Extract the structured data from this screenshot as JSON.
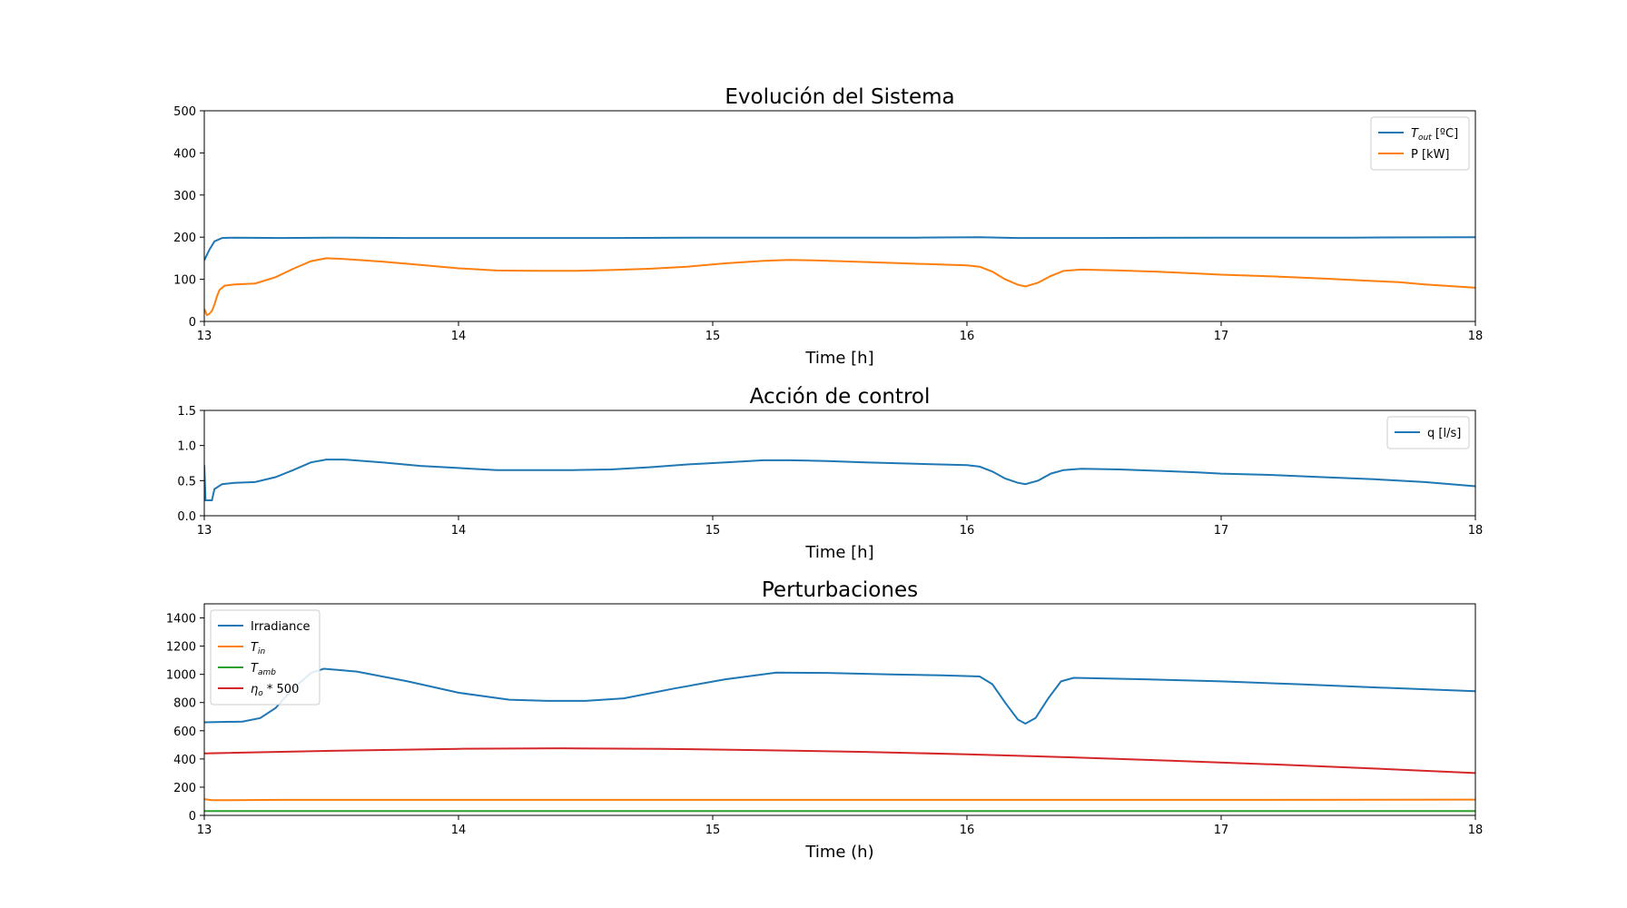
{
  "chart_data": [
    {
      "type": "line",
      "title": "Evolución del Sistema",
      "xlabel": "Time [h]",
      "ylabel": "",
      "xlim": [
        13,
        18
      ],
      "ylim": [
        0,
        500
      ],
      "xticks": [
        13,
        14,
        15,
        16,
        17,
        18
      ],
      "yticks": [
        0,
        100,
        200,
        300,
        400,
        500
      ],
      "grid": false,
      "legend_position": "top-right",
      "series": [
        {
          "name": "T_out [ºC]",
          "legend_main": "T",
          "legend_sub": "out",
          "legend_rest": " [ºC]",
          "color": "#1f77b4",
          "points": [
            [
              13.0,
              145
            ],
            [
              13.02,
              170
            ],
            [
              13.04,
              190
            ],
            [
              13.07,
              198
            ],
            [
              13.12,
              199
            ],
            [
              13.3,
              198
            ],
            [
              13.5,
              199
            ],
            [
              13.8,
              198
            ],
            [
              14.2,
              198
            ],
            [
              14.6,
              198
            ],
            [
              15.0,
              199
            ],
            [
              15.4,
              199
            ],
            [
              15.8,
              199
            ],
            [
              16.05,
              200
            ],
            [
              16.2,
              198
            ],
            [
              16.5,
              198
            ],
            [
              17.0,
              199
            ],
            [
              17.5,
              199
            ],
            [
              18.0,
              200
            ]
          ]
        },
        {
          "name": "P [kW]",
          "color": "#ff7f0e",
          "points": [
            [
              13.0,
              30
            ],
            [
              13.01,
              15
            ],
            [
              13.02,
              18
            ],
            [
              13.03,
              25
            ],
            [
              13.04,
              40
            ],
            [
              13.05,
              60
            ],
            [
              13.06,
              75
            ],
            [
              13.08,
              85
            ],
            [
              13.12,
              88
            ],
            [
              13.2,
              90
            ],
            [
              13.28,
              105
            ],
            [
              13.35,
              125
            ],
            [
              13.42,
              143
            ],
            [
              13.48,
              150
            ],
            [
              13.55,
              148
            ],
            [
              13.7,
              142
            ],
            [
              13.85,
              134
            ],
            [
              14.0,
              126
            ],
            [
              14.15,
              121
            ],
            [
              14.3,
              120
            ],
            [
              14.45,
              120
            ],
            [
              14.6,
              122
            ],
            [
              14.75,
              125
            ],
            [
              14.9,
              130
            ],
            [
              15.05,
              138
            ],
            [
              15.2,
              144
            ],
            [
              15.3,
              146
            ],
            [
              15.4,
              145
            ],
            [
              15.55,
              142
            ],
            [
              15.7,
              139
            ],
            [
              15.85,
              136
            ],
            [
              16.0,
              133
            ],
            [
              16.05,
              130
            ],
            [
              16.1,
              118
            ],
            [
              16.15,
              100
            ],
            [
              16.2,
              87
            ],
            [
              16.23,
              83
            ],
            [
              16.28,
              92
            ],
            [
              16.33,
              108
            ],
            [
              16.38,
              120
            ],
            [
              16.45,
              123
            ],
            [
              16.6,
              121
            ],
            [
              16.75,
              118
            ],
            [
              16.9,
              114
            ],
            [
              17.0,
              111
            ],
            [
              17.2,
              107
            ],
            [
              17.4,
              102
            ],
            [
              17.6,
              96
            ],
            [
              17.7,
              93
            ],
            [
              17.8,
              88
            ],
            [
              18.0,
              80
            ]
          ]
        }
      ]
    },
    {
      "type": "line",
      "title": "Acción de control",
      "xlabel": "Time [h]",
      "ylabel": "",
      "xlim": [
        13,
        18
      ],
      "ylim": [
        0,
        1.5
      ],
      "xticks": [
        13,
        14,
        15,
        16,
        17,
        18
      ],
      "yticks": [
        0.0,
        0.5,
        1.0,
        1.5
      ],
      "ytick_decimals": 1,
      "grid": false,
      "legend_position": "top-right",
      "series": [
        {
          "name": "q [l/s]",
          "color": "#1f77b4",
          "points": [
            [
              13.0,
              0.72
            ],
            [
              13.005,
              0.22
            ],
            [
              13.03,
              0.22
            ],
            [
              13.04,
              0.38
            ],
            [
              13.07,
              0.45
            ],
            [
              13.12,
              0.47
            ],
            [
              13.2,
              0.48
            ],
            [
              13.28,
              0.55
            ],
            [
              13.35,
              0.65
            ],
            [
              13.42,
              0.76
            ],
            [
              13.48,
              0.8
            ],
            [
              13.55,
              0.8
            ],
            [
              13.7,
              0.76
            ],
            [
              13.85,
              0.71
            ],
            [
              14.0,
              0.68
            ],
            [
              14.15,
              0.65
            ],
            [
              14.3,
              0.65
            ],
            [
              14.45,
              0.65
            ],
            [
              14.6,
              0.66
            ],
            [
              14.75,
              0.69
            ],
            [
              14.9,
              0.73
            ],
            [
              15.05,
              0.76
            ],
            [
              15.2,
              0.79
            ],
            [
              15.3,
              0.79
            ],
            [
              15.45,
              0.78
            ],
            [
              15.6,
              0.76
            ],
            [
              15.8,
              0.74
            ],
            [
              16.0,
              0.72
            ],
            [
              16.05,
              0.7
            ],
            [
              16.1,
              0.63
            ],
            [
              16.15,
              0.53
            ],
            [
              16.2,
              0.47
            ],
            [
              16.23,
              0.45
            ],
            [
              16.28,
              0.5
            ],
            [
              16.33,
              0.6
            ],
            [
              16.38,
              0.65
            ],
            [
              16.45,
              0.67
            ],
            [
              16.6,
              0.66
            ],
            [
              16.75,
              0.64
            ],
            [
              16.9,
              0.62
            ],
            [
              17.0,
              0.6
            ],
            [
              17.2,
              0.58
            ],
            [
              17.4,
              0.55
            ],
            [
              17.6,
              0.52
            ],
            [
              17.8,
              0.48
            ],
            [
              18.0,
              0.42
            ]
          ]
        }
      ]
    },
    {
      "type": "line",
      "title": "Perturbaciones",
      "xlabel": "Time (h)",
      "ylabel": "",
      "xlim": [
        13,
        18
      ],
      "ylim": [
        0,
        1500
      ],
      "xticks": [
        13,
        14,
        15,
        16,
        17,
        18
      ],
      "yticks": [
        0,
        200,
        400,
        600,
        800,
        1000,
        1200,
        1400
      ],
      "grid": false,
      "legend_position": "top-left",
      "series": [
        {
          "name": "Irradiance",
          "color": "#1f77b4",
          "points": [
            [
              13.0,
              660
            ],
            [
              13.15,
              665
            ],
            [
              13.22,
              690
            ],
            [
              13.28,
              760
            ],
            [
              13.35,
              900
            ],
            [
              13.42,
              1010
            ],
            [
              13.47,
              1040
            ],
            [
              13.6,
              1020
            ],
            [
              13.8,
              950
            ],
            [
              14.0,
              870
            ],
            [
              14.2,
              820
            ],
            [
              14.35,
              812
            ],
            [
              14.5,
              812
            ],
            [
              14.65,
              830
            ],
            [
              14.85,
              900
            ],
            [
              15.05,
              965
            ],
            [
              15.25,
              1012
            ],
            [
              15.45,
              1010
            ],
            [
              15.7,
              1000
            ],
            [
              15.9,
              993
            ],
            [
              16.05,
              985
            ],
            [
              16.1,
              930
            ],
            [
              16.15,
              800
            ],
            [
              16.2,
              680
            ],
            [
              16.23,
              650
            ],
            [
              16.27,
              690
            ],
            [
              16.32,
              830
            ],
            [
              16.37,
              950
            ],
            [
              16.42,
              975
            ],
            [
              16.7,
              965
            ],
            [
              17.0,
              950
            ],
            [
              17.3,
              930
            ],
            [
              17.6,
              908
            ],
            [
              18.0,
              880
            ]
          ]
        },
        {
          "name": "T_in",
          "legend_main": "T",
          "legend_sub": "in",
          "legend_rest": "",
          "color": "#ff7f0e",
          "points": [
            [
              13.0,
              115
            ],
            [
              13.03,
              108
            ],
            [
              13.1,
              108
            ],
            [
              13.3,
              110
            ],
            [
              14.0,
              110
            ],
            [
              15.0,
              110
            ],
            [
              16.0,
              110
            ],
            [
              17.0,
              110
            ],
            [
              18.0,
              112
            ]
          ]
        },
        {
          "name": "T_amb",
          "legend_main": "T",
          "legend_sub": "amb",
          "legend_rest": "",
          "color": "#2ca02c",
          "points": [
            [
              13.0,
              30
            ],
            [
              14.0,
              30
            ],
            [
              15.0,
              30
            ],
            [
              16.0,
              30
            ],
            [
              17.0,
              30
            ],
            [
              18.0,
              30
            ]
          ]
        },
        {
          "name": "η_o * 500",
          "legend_main": "η",
          "legend_sub": "o",
          "legend_rest": " * 500",
          "color": "#d62728",
          "points": [
            [
              13.0,
              440
            ],
            [
              13.5,
              458
            ],
            [
              14.0,
              472
            ],
            [
              14.4,
              476
            ],
            [
              14.8,
              472
            ],
            [
              15.2,
              462
            ],
            [
              15.6,
              450
            ],
            [
              16.0,
              433
            ],
            [
              16.4,
              412
            ],
            [
              16.8,
              388
            ],
            [
              17.2,
              362
            ],
            [
              17.6,
              332
            ],
            [
              18.0,
              300
            ]
          ]
        }
      ]
    }
  ]
}
